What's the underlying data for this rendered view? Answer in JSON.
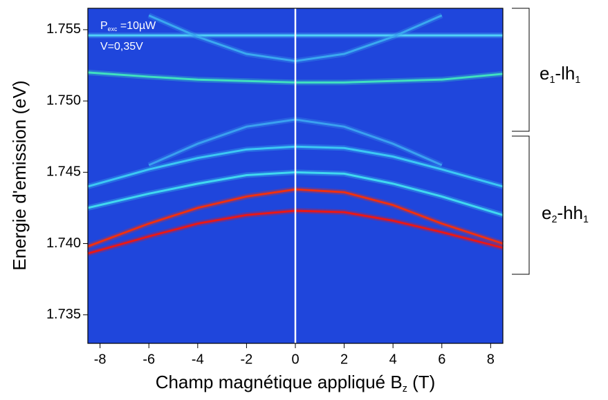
{
  "chart_data": {
    "type": "line",
    "x_label": [
      "Champ magnétique appliqué B",
      "z",
      " (T)"
    ],
    "y_label": "Energie d'emission (eV)",
    "xlim": [
      -8.5,
      8.5
    ],
    "ylim": [
      1.733,
      1.7565
    ],
    "xticks": [
      -8,
      -6,
      -4,
      -2,
      0,
      2,
      4,
      6,
      8
    ],
    "yticks": [
      1.735,
      {
        "value": 1.74,
        "label": "1.740"
      },
      1.745,
      {
        "value": 1.75,
        "label": "1.750"
      },
      1.755
    ],
    "background": "#1f46dc",
    "x": [
      -8.5,
      -6,
      -4,
      -2,
      0,
      2,
      4,
      6,
      8.5
    ],
    "series": [
      {
        "color": "#e81818",
        "values": [
          1.7393,
          1.7405,
          1.7414,
          1.742,
          1.7423,
          1.7422,
          1.7416,
          1.7408,
          1.7397
        ]
      },
      {
        "color": "#f03010",
        "values": [
          1.7398,
          1.7414,
          1.7425,
          1.7433,
          1.7438,
          1.7436,
          1.7427,
          1.7414,
          1.74
        ]
      },
      {
        "color": "#40d8f0",
        "values": [
          1.7425,
          1.7435,
          1.7442,
          1.7448,
          1.745,
          1.7449,
          1.7442,
          1.7433,
          1.742
        ]
      },
      {
        "color": "#3cc8f4",
        "values": [
          1.744,
          1.7452,
          1.746,
          1.7466,
          1.7468,
          1.7467,
          1.7461,
          1.7452,
          1.744
        ]
      },
      {
        "color": "#50d0f8",
        "values": [
          1.7546,
          1.7546,
          1.7546,
          1.7546,
          1.7546,
          1.7546,
          1.7546,
          1.7546,
          1.7546
        ]
      },
      {
        "color": "#40e0c0",
        "values": [
          1.752,
          1.7517,
          1.7515,
          1.7514,
          1.7513,
          1.7513,
          1.7514,
          1.7515,
          1.7519
        ]
      },
      {
        "color": "#3aa8f0",
        "values": [
          null,
          1.756,
          1.7545,
          1.7533,
          1.7528,
          1.7533,
          1.7545,
          1.756,
          null
        ]
      },
      {
        "color": "#3aa0f0",
        "values": [
          null,
          1.7455,
          1.747,
          1.7482,
          1.7487,
          1.7482,
          1.747,
          1.7455,
          null
        ]
      }
    ],
    "annotations": [
      [
        "P",
        "exc",
        " =10µW"
      ],
      [
        "V=0,35V"
      ],
      [
        "e",
        "1",
        "-lh",
        "1"
      ],
      [
        "e",
        "2",
        "-hh",
        "1"
      ]
    ]
  }
}
